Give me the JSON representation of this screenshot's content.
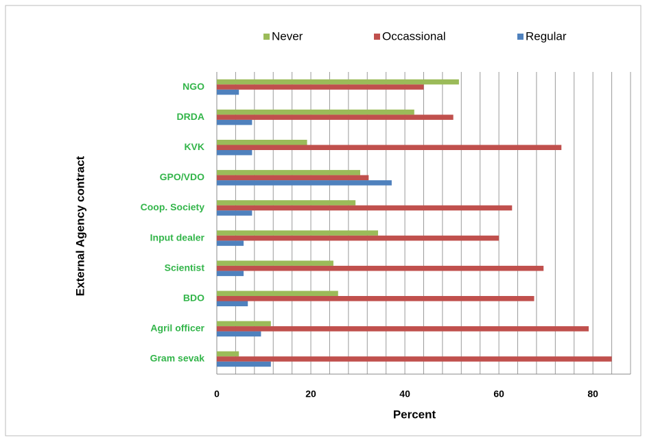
{
  "chart_data": {
    "type": "hbar",
    "categories": [
      "NGO",
      "DRDA",
      "KVK",
      "GPO/VDO",
      "Coop. Society",
      "Input dealer",
      "Scientist",
      "BDO",
      "Agril officer",
      "Gram sevak"
    ],
    "series": [
      {
        "name": "Never",
        "color": "#9bbb59",
        "values": [
          51.5,
          42,
          19.2,
          30.5,
          29.5,
          34.3,
          24.8,
          25.8,
          11.5,
          4.7
        ]
      },
      {
        "name": "Occassional",
        "color": "#c0504d",
        "values": [
          44,
          50.3,
          73.3,
          32.3,
          62.8,
          60,
          69.5,
          67.5,
          79.1,
          84
        ]
      },
      {
        "name": "Regular",
        "color": "#4f81bd",
        "values": [
          4.7,
          7.5,
          7.5,
          37.2,
          7.5,
          5.7,
          5.7,
          6.6,
          9.4,
          11.5
        ]
      }
    ],
    "xlabel": "Percent",
    "ylabel": "External Agency contract",
    "xlim": [
      0,
      88
    ],
    "xticks": [
      0,
      20,
      40,
      60,
      80
    ],
    "minor_xticks": [
      4,
      8,
      12,
      16,
      24,
      28,
      32,
      36,
      44,
      48,
      52,
      56,
      64,
      68,
      72,
      76,
      84,
      88
    ],
    "grid": true,
    "legend": "top"
  }
}
